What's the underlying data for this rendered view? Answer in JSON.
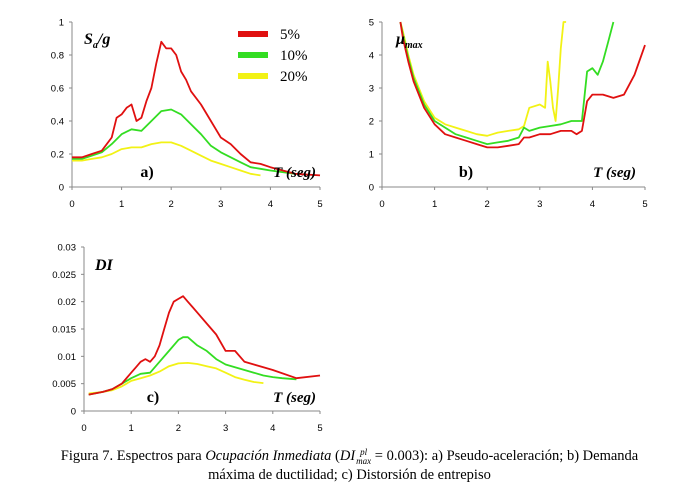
{
  "legend": [
    {
      "label": "5%",
      "color": "#e01010"
    },
    {
      "label": "10%",
      "color": "#33dd22"
    },
    {
      "label": "20%",
      "color": "#f2f215"
    }
  ],
  "chart_data": [
    {
      "type": "line",
      "panel_label": "a)",
      "ylabel_main": "S",
      "ylabel_sub": "a",
      "ylabel_suffix": "/g",
      "xlabel": "T (seg)",
      "xlim": [
        0,
        5
      ],
      "ylim": [
        0,
        1
      ],
      "xticks": [
        "0",
        "1",
        "2",
        "3",
        "4",
        "5"
      ],
      "yticks": [
        "0",
        "0.2",
        "0.4",
        "0.6",
        "0.8",
        "1"
      ],
      "series": [
        {
          "name": "5%",
          "x": [
            0,
            0.2,
            0.4,
            0.6,
            0.8,
            0.9,
            1.0,
            1.1,
            1.2,
            1.3,
            1.4,
            1.5,
            1.6,
            1.7,
            1.8,
            1.9,
            2.0,
            2.1,
            2.2,
            2.3,
            2.4,
            2.6,
            2.8,
            3.0,
            3.2,
            3.4,
            3.6,
            3.8,
            4.0,
            4.5,
            5.0
          ],
          "y": [
            0.18,
            0.18,
            0.2,
            0.22,
            0.3,
            0.42,
            0.44,
            0.48,
            0.5,
            0.4,
            0.42,
            0.52,
            0.6,
            0.75,
            0.88,
            0.84,
            0.84,
            0.8,
            0.7,
            0.65,
            0.58,
            0.5,
            0.4,
            0.3,
            0.26,
            0.2,
            0.15,
            0.14,
            0.12,
            0.08,
            0.07
          ]
        },
        {
          "name": "10%",
          "x": [
            0,
            0.2,
            0.4,
            0.6,
            0.8,
            1.0,
            1.2,
            1.4,
            1.6,
            1.8,
            2.0,
            2.2,
            2.4,
            2.6,
            2.8,
            3.0,
            3.2,
            3.4,
            3.6,
            3.8,
            4.0,
            4.5
          ],
          "y": [
            0.17,
            0.17,
            0.19,
            0.21,
            0.26,
            0.32,
            0.35,
            0.34,
            0.4,
            0.46,
            0.47,
            0.44,
            0.38,
            0.32,
            0.25,
            0.21,
            0.18,
            0.15,
            0.12,
            0.11,
            0.1,
            0.08
          ]
        },
        {
          "name": "20%",
          "x": [
            0,
            0.2,
            0.4,
            0.6,
            0.8,
            1.0,
            1.2,
            1.4,
            1.6,
            1.8,
            2.0,
            2.2,
            2.4,
            2.6,
            2.8,
            3.0,
            3.2,
            3.4,
            3.6,
            3.8
          ],
          "y": [
            0.16,
            0.16,
            0.17,
            0.18,
            0.2,
            0.23,
            0.24,
            0.24,
            0.26,
            0.27,
            0.27,
            0.25,
            0.22,
            0.19,
            0.16,
            0.14,
            0.12,
            0.1,
            0.08,
            0.07
          ]
        }
      ]
    },
    {
      "type": "line",
      "panel_label": "b)",
      "ylabel_main": "μ",
      "ylabel_sub": "max",
      "ylabel_suffix": "",
      "xlabel": "T (seg)",
      "xlim": [
        0,
        5
      ],
      "ylim": [
        0,
        5
      ],
      "xticks": [
        "0",
        "1",
        "2",
        "3",
        "4",
        "5"
      ],
      "yticks": [
        "0",
        "1",
        "2",
        "3",
        "4",
        "5"
      ],
      "series": [
        {
          "name": "5%",
          "x": [
            0.35,
            0.4,
            0.5,
            0.6,
            0.8,
            1.0,
            1.2,
            1.4,
            1.6,
            1.8,
            2.0,
            2.2,
            2.4,
            2.6,
            2.7,
            2.8,
            3.0,
            3.2,
            3.4,
            3.6,
            3.7,
            3.8,
            3.9,
            4.0,
            4.2,
            4.4,
            4.6,
            4.8,
            5.0
          ],
          "y": [
            5.0,
            4.5,
            3.8,
            3.2,
            2.4,
            1.9,
            1.6,
            1.5,
            1.4,
            1.3,
            1.2,
            1.2,
            1.25,
            1.3,
            1.5,
            1.5,
            1.6,
            1.6,
            1.7,
            1.7,
            1.6,
            1.7,
            2.6,
            2.8,
            2.8,
            2.7,
            2.8,
            3.4,
            4.3
          ]
        },
        {
          "name": "10%",
          "x": [
            0.35,
            0.4,
            0.5,
            0.6,
            0.8,
            1.0,
            1.2,
            1.4,
            1.6,
            1.8,
            2.0,
            2.2,
            2.4,
            2.6,
            2.7,
            2.8,
            3.0,
            3.2,
            3.4,
            3.6,
            3.8,
            3.9,
            4.0,
            4.1,
            4.2,
            4.3,
            4.4
          ],
          "y": [
            5.0,
            4.6,
            3.9,
            3.3,
            2.5,
            2.0,
            1.8,
            1.6,
            1.5,
            1.4,
            1.3,
            1.35,
            1.4,
            1.5,
            1.8,
            1.7,
            1.8,
            1.85,
            1.9,
            2.0,
            2.0,
            3.5,
            3.6,
            3.4,
            3.8,
            4.4,
            5.0
          ]
        },
        {
          "name": "20%",
          "x": [
            0.35,
            0.4,
            0.5,
            0.6,
            0.8,
            1.0,
            1.2,
            1.4,
            1.6,
            1.8,
            2.0,
            2.1,
            2.2,
            2.4,
            2.6,
            2.7,
            2.8,
            3.0,
            3.1,
            3.15,
            3.2,
            3.25,
            3.3,
            3.35,
            3.4,
            3.45,
            3.5
          ],
          "y": [
            5.0,
            4.7,
            4.0,
            3.4,
            2.6,
            2.1,
            1.9,
            1.8,
            1.7,
            1.6,
            1.55,
            1.6,
            1.65,
            1.7,
            1.75,
            1.85,
            2.4,
            2.5,
            2.4,
            3.8,
            3.2,
            2.4,
            2.0,
            3.0,
            4.2,
            5.0,
            5.0
          ]
        }
      ]
    },
    {
      "type": "line",
      "panel_label": "c)",
      "ylabel_main": "DI",
      "ylabel_sub": "",
      "ylabel_suffix": "",
      "xlabel": "T (seg)",
      "xlim": [
        0,
        5
      ],
      "ylim": [
        0,
        0.03
      ],
      "xticks": [
        "0",
        "1",
        "2",
        "3",
        "4",
        "5"
      ],
      "yticks": [
        "0",
        "0.005",
        "0.01",
        "0.015",
        "0.02",
        "0.025",
        "0.03"
      ],
      "series": [
        {
          "name": "5%",
          "x": [
            0.1,
            0.4,
            0.6,
            0.8,
            1.0,
            1.1,
            1.2,
            1.3,
            1.4,
            1.5,
            1.6,
            1.7,
            1.8,
            1.9,
            2.0,
            2.1,
            2.2,
            2.3,
            2.4,
            2.6,
            2.8,
            3.0,
            3.2,
            3.4,
            3.6,
            3.8,
            4.0,
            4.5,
            5.0
          ],
          "y": [
            0.003,
            0.0035,
            0.004,
            0.005,
            0.007,
            0.008,
            0.009,
            0.0095,
            0.009,
            0.01,
            0.012,
            0.015,
            0.018,
            0.02,
            0.0205,
            0.021,
            0.02,
            0.019,
            0.018,
            0.016,
            0.014,
            0.011,
            0.011,
            0.009,
            0.0085,
            0.008,
            0.0075,
            0.006,
            0.0065
          ]
        },
        {
          "name": "10%",
          "x": [
            0.1,
            0.4,
            0.6,
            0.8,
            1.0,
            1.2,
            1.4,
            1.6,
            1.8,
            2.0,
            2.1,
            2.2,
            2.4,
            2.6,
            2.8,
            3.0,
            3.2,
            3.4,
            3.6,
            3.8,
            4.0,
            4.2,
            4.5
          ],
          "y": [
            0.003,
            0.0035,
            0.004,
            0.005,
            0.006,
            0.0068,
            0.007,
            0.009,
            0.011,
            0.013,
            0.0135,
            0.0135,
            0.012,
            0.011,
            0.0095,
            0.0085,
            0.008,
            0.0075,
            0.007,
            0.0065,
            0.0062,
            0.006,
            0.0058
          ]
        },
        {
          "name": "20%",
          "x": [
            0.1,
            0.4,
            0.6,
            0.8,
            1.0,
            1.2,
            1.4,
            1.6,
            1.8,
            2.0,
            2.2,
            2.4,
            2.6,
            2.8,
            3.0,
            3.2,
            3.4,
            3.6,
            3.8
          ],
          "y": [
            0.0032,
            0.0035,
            0.0038,
            0.0045,
            0.0055,
            0.006,
            0.0065,
            0.0072,
            0.0082,
            0.0087,
            0.0088,
            0.0086,
            0.0082,
            0.0078,
            0.007,
            0.0062,
            0.0057,
            0.0053,
            0.0051
          ]
        }
      ]
    }
  ],
  "caption": {
    "prefix": "Figura 7. Espectros para ",
    "italic": "Ocupación Inmediata",
    "paren_open": " (",
    "di_symbol": "DI",
    "di_sup": "pl",
    "di_sub": "max",
    "eq_value": " = 0.003",
    "rest_line1": "): a) Pseudo-aceleración; b) Demanda",
    "line2": "máxima de ductilidad; c) Distorsión de entrepiso"
  }
}
